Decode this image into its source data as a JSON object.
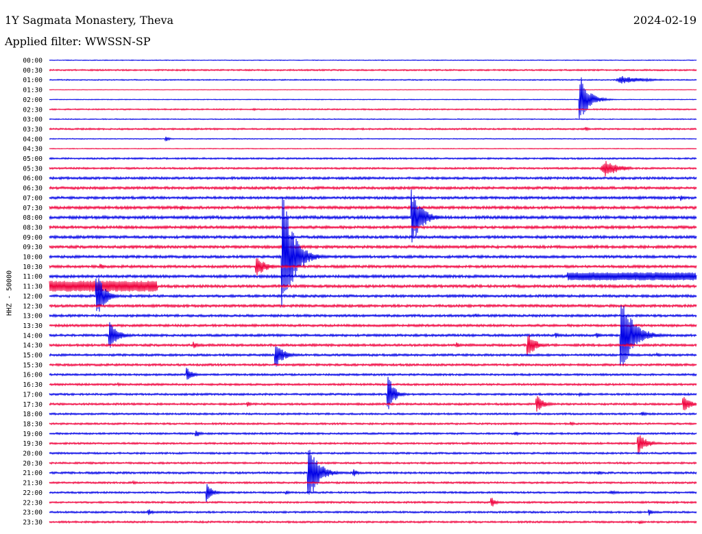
{
  "header": {
    "station": "1Y Sagmata Monastery, Theva",
    "date": "2024-02-19",
    "filter_label": "Applied filter:",
    "filter_value": "WWSSN-SP"
  },
  "channel_label": "HHZ - 50000",
  "colors": {
    "trace_a": "#0000e6",
    "trace_b": "#f0003c",
    "text": "#000000",
    "background": "#ffffff"
  },
  "chart_data": {
    "type": "line",
    "xlabel": "",
    "ylabel": "HHZ - 50000",
    "grid": false,
    "legend": "none",
    "row_labels": [
      "00:00",
      "00:30",
      "01:00",
      "01:30",
      "02:00",
      "02:30",
      "03:00",
      "03:30",
      "04:00",
      "04:30",
      "05:00",
      "05:30",
      "06:00",
      "06:30",
      "07:00",
      "07:30",
      "08:00",
      "08:30",
      "09:00",
      "09:30",
      "10:00",
      "10:30",
      "11:00",
      "11:30",
      "12:00",
      "12:30",
      "13:00",
      "13:30",
      "14:00",
      "14:30",
      "15:00",
      "15:30",
      "16:00",
      "16:30",
      "17:00",
      "17:30",
      "18:00",
      "18:30",
      "19:00",
      "19:30",
      "20:00",
      "20:30",
      "21:00",
      "21:30",
      "22:00",
      "22:30",
      "23:00",
      "23:30"
    ],
    "row_colors": [
      "trace_a",
      "trace_b"
    ],
    "row_duration_minutes": 30,
    "noise_level": [
      0.4,
      0.8,
      0.6,
      0.3,
      0.4,
      0.7,
      0.5,
      0.9,
      0.5,
      0.4,
      0.9,
      1.0,
      1.3,
      1.4,
      1.4,
      1.5,
      1.6,
      1.5,
      1.5,
      1.5,
      1.4,
      1.4,
      1.5,
      1.5,
      1.4,
      1.4,
      1.3,
      1.3,
      1.3,
      1.3,
      1.2,
      1.2,
      1.1,
      1.1,
      1.1,
      1.1,
      1.0,
      1.0,
      1.0,
      1.0,
      1.0,
      1.0,
      1.1,
      1.0,
      1.0,
      1.0,
      1.0,
      1.0
    ],
    "events": [
      {
        "row": 2,
        "minute": 26.2,
        "amplitude": 6,
        "duration": 2.6,
        "kind": "rumble"
      },
      {
        "row": 1,
        "minute": 6.7,
        "amplitude": 1.5,
        "duration": 0.2,
        "kind": "spike"
      },
      {
        "row": 4,
        "minute": 24.6,
        "amplitude": 38,
        "duration": 0.7,
        "kind": "spike"
      },
      {
        "row": 5,
        "minute": 9.5,
        "amplitude": 2,
        "duration": 0.2,
        "kind": "spike"
      },
      {
        "row": 7,
        "minute": 24.9,
        "amplitude": 3,
        "duration": 0.3,
        "kind": "spike"
      },
      {
        "row": 8,
        "minute": 5.4,
        "amplitude": 4,
        "duration": 0.3,
        "kind": "spike"
      },
      {
        "row": 11,
        "minute": 25.5,
        "amplitude": 13,
        "duration": 1.5,
        "kind": "rumble"
      },
      {
        "row": 14,
        "minute": 29.3,
        "amplitude": 5,
        "duration": 0.2,
        "kind": "spike"
      },
      {
        "row": 15,
        "minute": 6.1,
        "amplitude": 4,
        "duration": 0.4,
        "kind": "spike"
      },
      {
        "row": 16,
        "minute": 16.8,
        "amplitude": 45,
        "duration": 0.8,
        "kind": "spike"
      },
      {
        "row": 20,
        "minute": 10.8,
        "amplitude": 100,
        "duration": 0.9,
        "kind": "spike"
      },
      {
        "row": 21,
        "minute": 9.6,
        "amplitude": 15,
        "duration": 0.8,
        "kind": "spike"
      },
      {
        "row": 21,
        "minute": 2.4,
        "amplitude": 4,
        "duration": 0.3,
        "kind": "spike"
      },
      {
        "row": 22,
        "minute": 24.0,
        "amplitude": 6,
        "duration": 6.0,
        "kind": "band"
      },
      {
        "row": 23,
        "minute": 0.0,
        "amplitude": 8,
        "duration": 5.0,
        "kind": "band"
      },
      {
        "row": 23,
        "minute": 3.9,
        "amplitude": 7,
        "duration": 0.5,
        "kind": "spike"
      },
      {
        "row": 24,
        "minute": 2.2,
        "amplitude": 38,
        "duration": 0.6,
        "kind": "spike"
      },
      {
        "row": 26,
        "minute": 19.8,
        "amplitude": 3,
        "duration": 0.4,
        "kind": "spike"
      },
      {
        "row": 28,
        "minute": 2.8,
        "amplitude": 20,
        "duration": 0.7,
        "kind": "spike"
      },
      {
        "row": 28,
        "minute": 26.5,
        "amplitude": 60,
        "duration": 1.0,
        "kind": "spike"
      },
      {
        "row": 28,
        "minute": 23.5,
        "amplitude": 4,
        "duration": 0.3,
        "kind": "spike"
      },
      {
        "row": 28,
        "minute": 25.4,
        "amplitude": 5,
        "duration": 0.3,
        "kind": "spike"
      },
      {
        "row": 29,
        "minute": 6.7,
        "amplitude": 5,
        "duration": 0.4,
        "kind": "spike"
      },
      {
        "row": 29,
        "minute": 18.9,
        "amplitude": 4,
        "duration": 0.3,
        "kind": "spike"
      },
      {
        "row": 29,
        "minute": 22.2,
        "amplitude": 20,
        "duration": 0.6,
        "kind": "spike"
      },
      {
        "row": 30,
        "minute": 10.5,
        "amplitude": 18,
        "duration": 0.7,
        "kind": "spike"
      },
      {
        "row": 30,
        "minute": 15.0,
        "amplitude": 2,
        "duration": 0.2,
        "kind": "spike"
      },
      {
        "row": 30,
        "minute": 28.2,
        "amplitude": 3,
        "duration": 0.3,
        "kind": "spike"
      },
      {
        "row": 32,
        "minute": 6.4,
        "amplitude": 10,
        "duration": 0.5,
        "kind": "spike"
      },
      {
        "row": 32,
        "minute": 4.5,
        "amplitude": 2,
        "duration": 0.2,
        "kind": "spike"
      },
      {
        "row": 33,
        "minute": 3.2,
        "amplitude": 3,
        "duration": 0.3,
        "kind": "spike"
      },
      {
        "row": 34,
        "minute": 15.7,
        "amplitude": 30,
        "duration": 0.5,
        "kind": "spike"
      },
      {
        "row": 34,
        "minute": 24.6,
        "amplitude": 3,
        "duration": 0.3,
        "kind": "spike"
      },
      {
        "row": 35,
        "minute": 9.2,
        "amplitude": 4,
        "duration": 0.3,
        "kind": "spike"
      },
      {
        "row": 35,
        "minute": 22.6,
        "amplitude": 13,
        "duration": 0.6,
        "kind": "spike"
      },
      {
        "row": 35,
        "minute": 29.4,
        "amplitude": 12,
        "duration": 0.6,
        "kind": "spike"
      },
      {
        "row": 36,
        "minute": 27.5,
        "amplitude": 4,
        "duration": 0.3,
        "kind": "spike"
      },
      {
        "row": 37,
        "minute": 24.2,
        "amplitude": 3,
        "duration": 0.3,
        "kind": "spike"
      },
      {
        "row": 38,
        "minute": 6.8,
        "amplitude": 6,
        "duration": 0.4,
        "kind": "spike"
      },
      {
        "row": 38,
        "minute": 21.6,
        "amplitude": 4,
        "duration": 0.3,
        "kind": "spike"
      },
      {
        "row": 39,
        "minute": 27.3,
        "amplitude": 16,
        "duration": 0.7,
        "kind": "spike"
      },
      {
        "row": 42,
        "minute": 12.0,
        "amplitude": 48,
        "duration": 0.8,
        "kind": "spike"
      },
      {
        "row": 42,
        "minute": 14.1,
        "amplitude": 6,
        "duration": 0.4,
        "kind": "spike"
      },
      {
        "row": 42,
        "minute": 25.5,
        "amplitude": 3,
        "duration": 0.3,
        "kind": "spike"
      },
      {
        "row": 43,
        "minute": 3.9,
        "amplitude": 3,
        "duration": 0.3,
        "kind": "spike"
      },
      {
        "row": 44,
        "minute": 7.3,
        "amplitude": 14,
        "duration": 0.5,
        "kind": "spike"
      },
      {
        "row": 44,
        "minute": 11.0,
        "amplitude": 3,
        "duration": 0.3,
        "kind": "spike"
      },
      {
        "row": 44,
        "minute": 25.8,
        "amplitude": 3,
        "duration": 1.0,
        "kind": "rumble"
      },
      {
        "row": 45,
        "minute": 20.5,
        "amplitude": 8,
        "duration": 0.4,
        "kind": "spike"
      },
      {
        "row": 46,
        "minute": 4.6,
        "amplitude": 5,
        "duration": 0.4,
        "kind": "spike"
      },
      {
        "row": 46,
        "minute": 27.8,
        "amplitude": 5,
        "duration": 0.4,
        "kind": "spike"
      },
      {
        "row": 47,
        "minute": 27.4,
        "amplitude": 3,
        "duration": 0.3,
        "kind": "spike"
      }
    ]
  }
}
